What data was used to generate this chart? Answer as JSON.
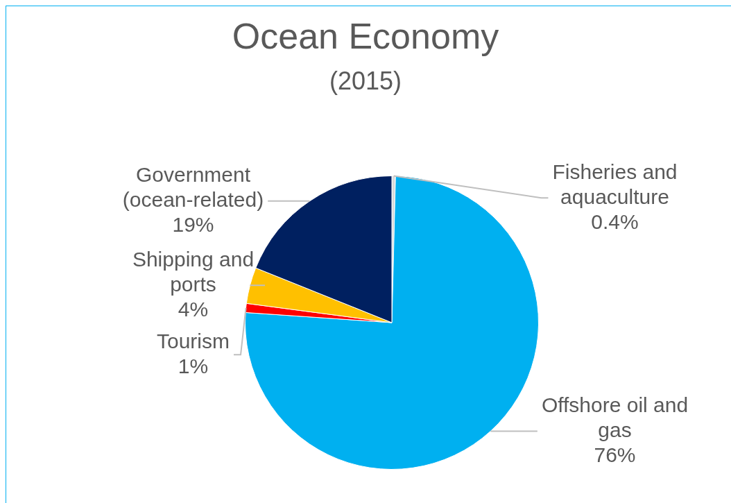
{
  "chart_data": {
    "type": "pie",
    "title": "Ocean Economy",
    "subtitle": "(2015)",
    "categories": [
      "Fisheries and aquaculture",
      "Offshore oil and gas",
      "Tourism",
      "Shipping and ports",
      "Government (ocean-related)"
    ],
    "values": [
      0.4,
      76,
      1,
      4,
      19
    ],
    "colors": [
      "#d9d9d9",
      "#00b0f0",
      "#ff0000",
      "#ffc000",
      "#002060"
    ],
    "value_labels": [
      "0.4%",
      "76%",
      "1%",
      "4%",
      "19%"
    ],
    "legend": false
  }
}
